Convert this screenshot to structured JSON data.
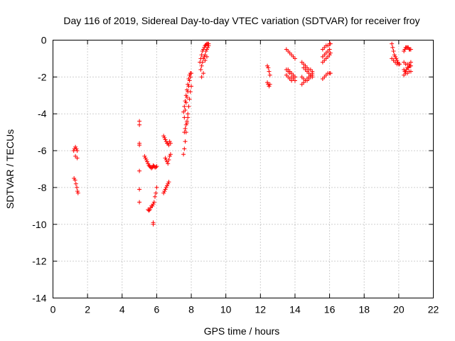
{
  "chart_data": {
    "type": "scatter",
    "title": "Day 116 of 2019, Sidereal Day-to-day VTEC variation (SDTVAR) for receiver froy",
    "xlabel": "GPS time / hours",
    "ylabel": "SDTVAR / TECUs",
    "xlim": [
      0,
      22
    ],
    "ylim": [
      -14,
      0
    ],
    "xticks": [
      0,
      2,
      4,
      6,
      8,
      10,
      12,
      14,
      16,
      18,
      20,
      22
    ],
    "yticks": [
      0,
      -2,
      -4,
      -6,
      -8,
      -10,
      -12,
      -14
    ],
    "grid": true,
    "marker": "+",
    "color": "#ff0000",
    "series": [
      {
        "name": "SDTVAR",
        "x": [
          1.2,
          1.25,
          1.3,
          1.35,
          1.4,
          1.3,
          1.4,
          1.22,
          1.28,
          1.33,
          1.38,
          1.42,
          1.45,
          5.0,
          5.0,
          5.0,
          5.0,
          5.0,
          5.0,
          5.0,
          5.3,
          5.35,
          5.4,
          5.45,
          5.5,
          5.55,
          5.6,
          5.65,
          5.7,
          5.75,
          5.8,
          5.85,
          5.9,
          5.95,
          6.0,
          5.5,
          5.55,
          5.6,
          5.65,
          5.7,
          5.75,
          5.8,
          5.85,
          5.9,
          5.95,
          6.0,
          5.8,
          5.8,
          6.4,
          6.45,
          6.5,
          6.55,
          6.6,
          6.65,
          6.7,
          6.75,
          6.8,
          6.5,
          6.55,
          6.6,
          6.65,
          6.7,
          6.75,
          6.8,
          6.4,
          6.45,
          6.5,
          6.55,
          6.6,
          6.65,
          6.7,
          7.55,
          7.6,
          7.65,
          7.7,
          7.75,
          7.8,
          7.85,
          7.9,
          7.95,
          8.0,
          7.6,
          7.65,
          7.7,
          7.75,
          7.8,
          7.85,
          7.9,
          7.95,
          7.55,
          7.6,
          7.65,
          7.7,
          7.75,
          7.8,
          7.85,
          7.9,
          7.95,
          8.0,
          7.6,
          7.65,
          7.7,
          7.75,
          7.8,
          8.5,
          8.55,
          8.6,
          8.65,
          8.7,
          8.75,
          8.8,
          8.85,
          8.9,
          8.95,
          9.0,
          8.55,
          8.6,
          8.65,
          8.7,
          8.75,
          8.8,
          8.85,
          8.9,
          8.95,
          9.0,
          8.6,
          8.7,
          8.8,
          8.9,
          12.4,
          12.45,
          12.5,
          12.55,
          12.4,
          12.45,
          12.5,
          12.55,
          13.5,
          13.6,
          13.7,
          13.8,
          13.9,
          14.0,
          13.6,
          13.7,
          13.8,
          13.9,
          14.0,
          13.5,
          13.6,
          13.7,
          13.8,
          13.9,
          14.0,
          13.5,
          13.6,
          13.7,
          13.8,
          13.9,
          14.0,
          14.4,
          14.5,
          14.6,
          14.7,
          14.8,
          14.9,
          15.0,
          14.5,
          14.6,
          14.7,
          14.8,
          14.9,
          15.0,
          14.4,
          14.5,
          14.6,
          14.7,
          14.8,
          14.9,
          15.0,
          14.4,
          14.5,
          14.6,
          14.7,
          14.8,
          14.9,
          15.0,
          15.6,
          15.7,
          15.8,
          15.9,
          16.0,
          16.05,
          15.6,
          15.7,
          15.8,
          15.9,
          16.0,
          15.6,
          15.7,
          15.8,
          15.9,
          16.0,
          16.05,
          15.6,
          15.7,
          15.8,
          15.9,
          16.0,
          16.05,
          19.6,
          19.65,
          19.7,
          19.75,
          19.8,
          19.85,
          19.9,
          19.95,
          20.0,
          20.05,
          19.6,
          19.7,
          19.8,
          19.9,
          20.3,
          20.35,
          20.4,
          20.45,
          20.5,
          20.55,
          20.6,
          20.65,
          20.7,
          20.3,
          20.4,
          20.5,
          20.6,
          20.7,
          20.3,
          20.35,
          20.4,
          20.45,
          20.5,
          20.55,
          20.6,
          20.65,
          20.7,
          20.3,
          20.4,
          20.5,
          20.6,
          20.7
        ],
        "y": [
          -6.0,
          -5.9,
          -5.8,
          -5.9,
          -6.0,
          -6.3,
          -6.4,
          -7.5,
          -7.6,
          -7.8,
          -8.0,
          -8.2,
          -8.3,
          -4.4,
          -4.6,
          -5.6,
          -5.7,
          -7.1,
          -8.1,
          -8.8,
          -6.3,
          -6.4,
          -6.5,
          -6.6,
          -6.7,
          -6.8,
          -6.85,
          -6.9,
          -6.95,
          -6.9,
          -6.8,
          -6.85,
          -6.9,
          -6.9,
          -6.85,
          -9.2,
          -9.25,
          -9.2,
          -9.1,
          -9.0,
          -9.0,
          -8.9,
          -8.8,
          -8.5,
          -8.3,
          -8.0,
          -9.9,
          -10.0,
          -5.2,
          -5.3,
          -5.4,
          -5.5,
          -5.6,
          -5.6,
          -5.7,
          -5.5,
          -5.6,
          -6.4,
          -6.5,
          -6.6,
          -6.7,
          -6.5,
          -6.3,
          -6.2,
          -8.3,
          -8.2,
          -8.1,
          -8.0,
          -7.9,
          -7.8,
          -7.7,
          -6.2,
          -5.9,
          -5.5,
          -5.0,
          -4.5,
          -4.0,
          -3.6,
          -3.2,
          -2.8,
          -2.5,
          -4.2,
          -3.8,
          -3.4,
          -3.1,
          -2.8,
          -2.5,
          -2.2,
          -2.0,
          -3.9,
          -3.6,
          -3.3,
          -3.0,
          -2.7,
          -2.4,
          -2.1,
          -1.9,
          -1.8,
          -1.8,
          -5.0,
          -4.8,
          -4.6,
          -4.4,
          -4.2,
          -1.2,
          -1.0,
          -0.8,
          -0.6,
          -0.5,
          -0.4,
          -0.3,
          -0.25,
          -0.2,
          -0.2,
          -0.2,
          -1.6,
          -1.4,
          -1.2,
          -1.0,
          -0.9,
          -0.8,
          -0.6,
          -0.5,
          -0.4,
          -0.3,
          -2.0,
          -1.8,
          -1.1,
          -0.9,
          -1.4,
          -1.5,
          -1.7,
          -1.9,
          -2.3,
          -2.4,
          -2.5,
          -2.4,
          -0.5,
          -0.6,
          -0.7,
          -0.8,
          -0.9,
          -1.0,
          -1.6,
          -1.7,
          -1.8,
          -1.9,
          -2.0,
          -1.6,
          -1.7,
          -1.8,
          -2.0,
          -2.1,
          -2.2,
          -1.9,
          -2.0,
          -2.1,
          -2.2,
          -2.1,
          -2.0,
          -1.2,
          -1.3,
          -1.4,
          -1.5,
          -1.6,
          -1.6,
          -1.7,
          -1.5,
          -1.6,
          -1.7,
          -1.8,
          -1.9,
          -2.0,
          -2.0,
          -2.1,
          -2.2,
          -2.2,
          -2.1,
          -2.0,
          -1.9,
          -2.4,
          -2.3,
          -2.2,
          -2.1,
          -2.0,
          -1.9,
          -1.8,
          -0.5,
          -0.4,
          -0.3,
          -0.3,
          -0.2,
          -0.2,
          -0.9,
          -0.8,
          -0.7,
          -0.6,
          -0.5,
          -1.2,
          -1.1,
          -1.0,
          -0.9,
          -0.8,
          -0.7,
          -2.1,
          -2.0,
          -1.9,
          -1.8,
          -1.8,
          -1.8,
          -0.2,
          -0.4,
          -0.6,
          -0.8,
          -0.9,
          -1.0,
          -1.1,
          -1.2,
          -1.3,
          -1.3,
          -1.0,
          -1.1,
          -1.2,
          -1.3,
          -0.6,
          -0.5,
          -0.4,
          -0.4,
          -0.4,
          -0.4,
          -0.5,
          -0.5,
          -0.5,
          -1.2,
          -1.3,
          -1.3,
          -1.3,
          -1.2,
          -1.6,
          -1.7,
          -1.7,
          -1.6,
          -1.5,
          -1.5,
          -1.4,
          -1.4,
          -1.4,
          -1.9,
          -1.8,
          -1.8,
          -1.7,
          -1.7
        ]
      }
    ]
  }
}
